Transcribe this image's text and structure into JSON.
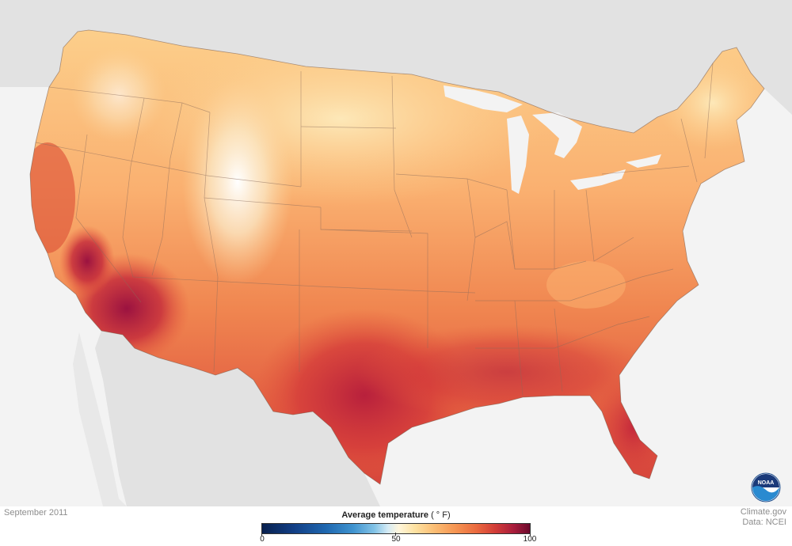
{
  "map": {
    "date": "September 2011",
    "credit_line1": "Climate.gov",
    "credit_line2": "Data: NCEI",
    "logo_text": "NOAA"
  },
  "legend": {
    "title": "Average temperature",
    "unit": "( ° F)",
    "min": "0",
    "mid": "50",
    "max": "100",
    "colors": [
      "#08204e",
      "#1f68b0",
      "#83c3e6",
      "#fff6dc",
      "#fbbf76",
      "#ea6a3f",
      "#a81d3c",
      "#6b0a2c"
    ]
  }
}
